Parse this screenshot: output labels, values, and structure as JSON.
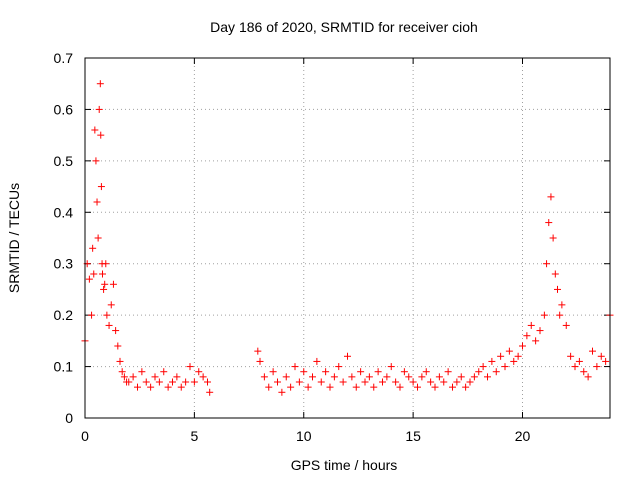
{
  "chart_data": {
    "type": "scatter",
    "title": "Day 186 of 2020, SRMTID for receiver cioh",
    "xlabel": "GPS time / hours",
    "ylabel": "SRMTID / TECUs",
    "xlim": [
      0,
      24
    ],
    "ylim": [
      0,
      0.7
    ],
    "xticks": [
      "0",
      "5",
      "10",
      "15",
      "20"
    ],
    "yticks": [
      "0",
      "0.1",
      "0.2",
      "0.3",
      "0.4",
      "0.5",
      "0.6",
      "0.7"
    ],
    "grid": true,
    "marker": "+",
    "color": "#ff0000",
    "series": [
      {
        "name": "SRMTID",
        "x": [
          0.0,
          0.1,
          0.2,
          0.3,
          0.35,
          0.4,
          0.45,
          0.5,
          0.55,
          0.6,
          0.65,
          0.7,
          0.72,
          0.75,
          0.78,
          0.8,
          0.85,
          0.9,
          0.95,
          1.0,
          1.1,
          1.2,
          1.3,
          1.4,
          1.5,
          1.6,
          1.7,
          1.8,
          1.9,
          2.0,
          2.2,
          2.4,
          2.6,
          2.8,
          3.0,
          3.2,
          3.4,
          3.6,
          3.8,
          4.0,
          4.2,
          4.4,
          4.6,
          4.8,
          5.0,
          5.2,
          5.4,
          5.6,
          5.7,
          7.9,
          8.0,
          8.2,
          8.4,
          8.6,
          8.8,
          9.0,
          9.2,
          9.4,
          9.6,
          9.8,
          10.0,
          10.2,
          10.4,
          10.6,
          10.8,
          11.0,
          11.2,
          11.4,
          11.6,
          11.8,
          12.0,
          12.2,
          12.4,
          12.6,
          12.8,
          13.0,
          13.2,
          13.4,
          13.6,
          13.8,
          14.0,
          14.2,
          14.4,
          14.6,
          14.8,
          15.0,
          15.2,
          15.4,
          15.6,
          15.8,
          16.0,
          16.2,
          16.4,
          16.6,
          16.8,
          17.0,
          17.2,
          17.4,
          17.6,
          17.8,
          18.0,
          18.2,
          18.4,
          18.6,
          18.8,
          19.0,
          19.2,
          19.4,
          19.6,
          19.8,
          20.0,
          20.2,
          20.4,
          20.6,
          20.8,
          21.0,
          21.1,
          21.2,
          21.3,
          21.4,
          21.5,
          21.6,
          21.7,
          21.8,
          22.0,
          22.2,
          22.4,
          22.6,
          22.8,
          23.0,
          23.2,
          23.4,
          23.6,
          23.8,
          24.0
        ],
        "y": [
          0.15,
          0.3,
          0.27,
          0.2,
          0.33,
          0.28,
          0.56,
          0.5,
          0.42,
          0.35,
          0.6,
          0.65,
          0.55,
          0.45,
          0.3,
          0.28,
          0.25,
          0.26,
          0.3,
          0.2,
          0.18,
          0.22,
          0.26,
          0.17,
          0.14,
          0.11,
          0.09,
          0.08,
          0.07,
          0.07,
          0.08,
          0.06,
          0.09,
          0.07,
          0.06,
          0.08,
          0.07,
          0.09,
          0.06,
          0.07,
          0.08,
          0.06,
          0.07,
          0.1,
          0.07,
          0.09,
          0.08,
          0.07,
          0.05,
          0.13,
          0.11,
          0.08,
          0.06,
          0.09,
          0.07,
          0.05,
          0.08,
          0.06,
          0.1,
          0.07,
          0.09,
          0.06,
          0.08,
          0.11,
          0.07,
          0.09,
          0.06,
          0.08,
          0.1,
          0.07,
          0.12,
          0.08,
          0.06,
          0.09,
          0.07,
          0.08,
          0.06,
          0.09,
          0.07,
          0.08,
          0.1,
          0.07,
          0.06,
          0.09,
          0.08,
          0.07,
          0.06,
          0.08,
          0.09,
          0.07,
          0.06,
          0.08,
          0.07,
          0.09,
          0.06,
          0.07,
          0.08,
          0.06,
          0.07,
          0.08,
          0.09,
          0.1,
          0.08,
          0.11,
          0.09,
          0.12,
          0.1,
          0.13,
          0.11,
          0.12,
          0.14,
          0.16,
          0.18,
          0.15,
          0.17,
          0.2,
          0.3,
          0.38,
          0.43,
          0.35,
          0.28,
          0.25,
          0.2,
          0.22,
          0.18,
          0.12,
          0.1,
          0.11,
          0.09,
          0.08,
          0.13,
          0.1,
          0.12,
          0.11,
          0.2
        ]
      }
    ]
  }
}
